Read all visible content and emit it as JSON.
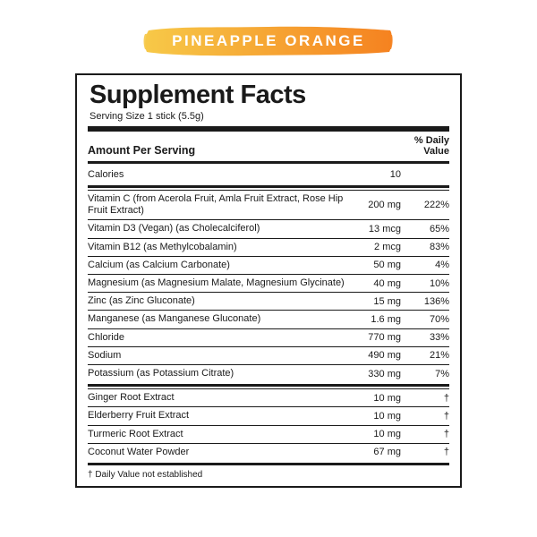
{
  "flavor": {
    "label": "PINEAPPLE ORANGE",
    "text_color": "#ffffff",
    "gradient_start": "#f7c948",
    "gradient_end": "#f58220",
    "font_size": 17,
    "letter_spacing": 2.5
  },
  "panel": {
    "title": "Supplement Facts",
    "serving_size": "Serving Size 1 stick (5.5g)",
    "header_name": "Amount Per Serving",
    "header_dv": "% Daily\nValue",
    "footnote": "† Daily Value not established",
    "border_color": "#1a1a1a",
    "text_color": "#1a1a1a",
    "background_color": "#ffffff",
    "title_fontsize": 29,
    "body_fontsize": 11
  },
  "groups": [
    {
      "rows": [
        {
          "name": "Calories",
          "amount": "10",
          "dv": ""
        }
      ]
    },
    {
      "rows": [
        {
          "name": "Vitamin C (from Acerola Fruit, Amla Fruit Extract, Rose Hip Fruit Extract)",
          "amount": "200 mg",
          "dv": "222%"
        },
        {
          "name": "Vitamin D3 (Vegan) (as Cholecalciferol)",
          "amount": "13 mcg",
          "dv": "65%"
        },
        {
          "name": "Vitamin B12 (as Methylcobalamin)",
          "amount": "2 mcg",
          "dv": "83%"
        },
        {
          "name": "Calcium (as Calcium Carbonate)",
          "amount": "50 mg",
          "dv": "4%"
        },
        {
          "name": "Magnesium (as Magnesium Malate, Magnesium Glycinate)",
          "amount": "40 mg",
          "dv": "10%"
        },
        {
          "name": "Zinc (as Zinc Gluconate)",
          "amount": "15 mg",
          "dv": "136%"
        },
        {
          "name": "Manganese (as Manganese Gluconate)",
          "amount": "1.6 mg",
          "dv": "70%"
        },
        {
          "name": "Chloride",
          "amount": "770 mg",
          "dv": "33%"
        },
        {
          "name": "Sodium",
          "amount": "490 mg",
          "dv": "21%"
        },
        {
          "name": "Potassium (as Potassium Citrate)",
          "amount": "330 mg",
          "dv": "7%"
        }
      ]
    },
    {
      "rows": [
        {
          "name": "Ginger Root Extract",
          "amount": "10 mg",
          "dv": "†"
        },
        {
          "name": "Elderberry Fruit Extract",
          "amount": "10 mg",
          "dv": "†"
        },
        {
          "name": "Turmeric Root Extract",
          "amount": "10 mg",
          "dv": "†"
        },
        {
          "name": "Coconut Water Powder",
          "amount": "67 mg",
          "dv": "†"
        }
      ]
    }
  ]
}
